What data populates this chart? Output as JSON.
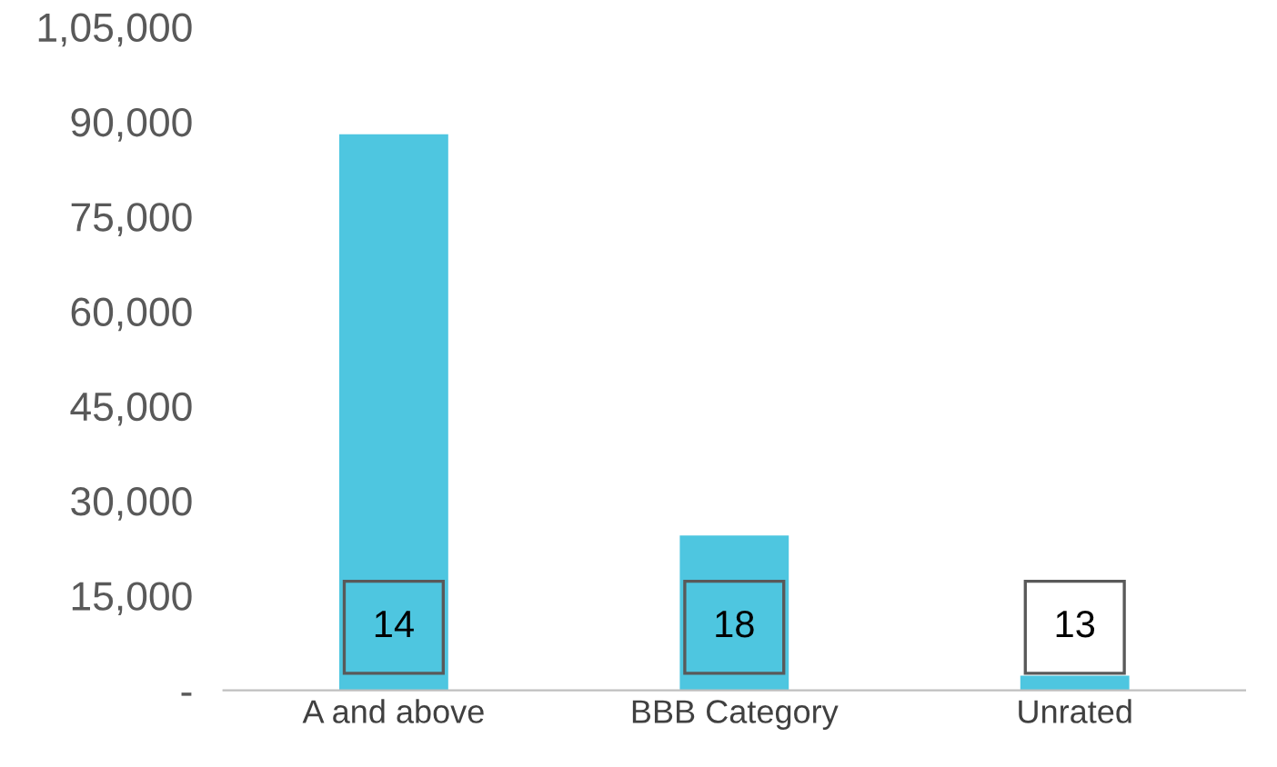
{
  "chart_data": {
    "type": "bar",
    "categories": [
      "A and above",
      "BBB Category",
      "Unrated"
    ],
    "values": [
      88000,
      24500,
      2300
    ],
    "color": "#4ec6e0",
    "ylim": [
      0,
      105000
    ],
    "yticks": [
      {
        "value": 0,
        "label": "-"
      },
      {
        "value": 15000,
        "label": "15,000"
      },
      {
        "value": 30000,
        "label": "30,000"
      },
      {
        "value": 45000,
        "label": "45,000"
      },
      {
        "value": 60000,
        "label": "60,000"
      },
      {
        "value": 75000,
        "label": "75,000"
      },
      {
        "value": 90000,
        "label": "90,000"
      },
      {
        "value": 105000,
        "label": "1,05,000"
      }
    ],
    "annotations": [
      "14",
      "18",
      "13"
    ],
    "grid": false
  }
}
